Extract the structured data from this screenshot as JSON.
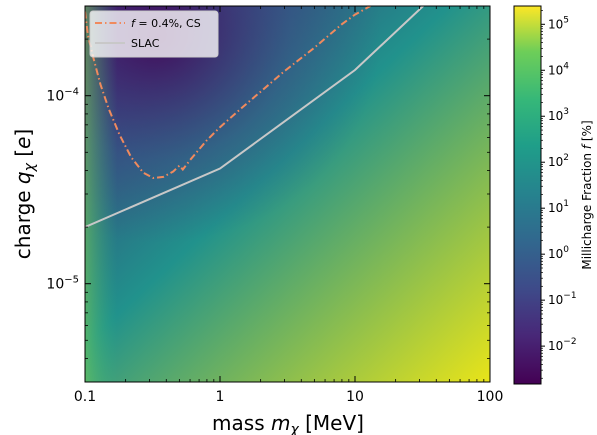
{
  "chart_data": {
    "type": "heatmap",
    "xlabel": "mass m_χ [MeV]",
    "ylabel": "charge q_χ [e]",
    "xscale": "log",
    "yscale": "log",
    "xlim": [
      0.1,
      100
    ],
    "ylim": [
      3e-06,
      0.0003
    ],
    "x_ticks": [
      {
        "value": 0.1,
        "label": "0.1"
      },
      {
        "value": 1,
        "label": "1"
      },
      {
        "value": 10,
        "label": "10"
      },
      {
        "value": 100,
        "label": "100"
      }
    ],
    "y_ticks": [
      {
        "value": 1e-05,
        "base": "10",
        "exp": "−5"
      },
      {
        "value": 0.0001,
        "base": "10",
        "exp": "−4"
      }
    ],
    "colorbar": {
      "label": "Millicharge Fraction f [%]",
      "scale": "log",
      "range": [
        0.0015,
        250000
      ],
      "colormap": "viridis",
      "ticks": [
        {
          "value": 0.01,
          "base": "10",
          "exp": "−2"
        },
        {
          "value": 0.1,
          "base": "10",
          "exp": "−1"
        },
        {
          "value": 1,
          "base": "10",
          "exp": "0"
        },
        {
          "value": 10,
          "base": "10",
          "exp": "1"
        },
        {
          "value": 100,
          "base": "10",
          "exp": "2"
        },
        {
          "value": 1000,
          "base": "10",
          "exp": "3"
        },
        {
          "value": 10000,
          "base": "10",
          "exp": "4"
        },
        {
          "value": 100000,
          "base": "10",
          "exp": "5"
        }
      ]
    },
    "series": [
      {
        "name": "f = 0.4%,  CS",
        "style": "dashdot",
        "color": "#f08a5d",
        "points": [
          [
            0.1,
            0.00028
          ],
          [
            0.105,
            0.00021
          ],
          [
            0.115,
            0.00016
          ],
          [
            0.13,
            0.000115
          ],
          [
            0.15,
            8.5e-05
          ],
          [
            0.18,
            6.2e-05
          ],
          [
            0.22,
            4.7e-05
          ],
          [
            0.27,
            3.9e-05
          ],
          [
            0.32,
            3.65e-05
          ],
          [
            0.38,
            3.7e-05
          ],
          [
            0.45,
            3.95e-05
          ],
          [
            0.5,
            4.25e-05
          ],
          [
            0.53,
            4.05e-05
          ],
          [
            0.6,
            4.55e-05
          ],
          [
            0.8,
            5.8e-05
          ],
          [
            1,
            6.8e-05
          ],
          [
            1.5,
            8.8e-05
          ],
          [
            2,
            0.000105
          ],
          [
            3,
            0.000135
          ],
          [
            5,
            0.00018
          ],
          [
            8,
            0.00024
          ],
          [
            10,
            0.00027
          ],
          [
            13,
            0.0003
          ]
        ]
      },
      {
        "name": "SLAC",
        "style": "solid",
        "color": "#c8c8c8",
        "points": [
          [
            0.1,
            2e-05
          ],
          [
            1,
            4.1e-05
          ],
          [
            10,
            0.000137
          ],
          [
            32,
            0.0003
          ]
        ]
      }
    ]
  }
}
